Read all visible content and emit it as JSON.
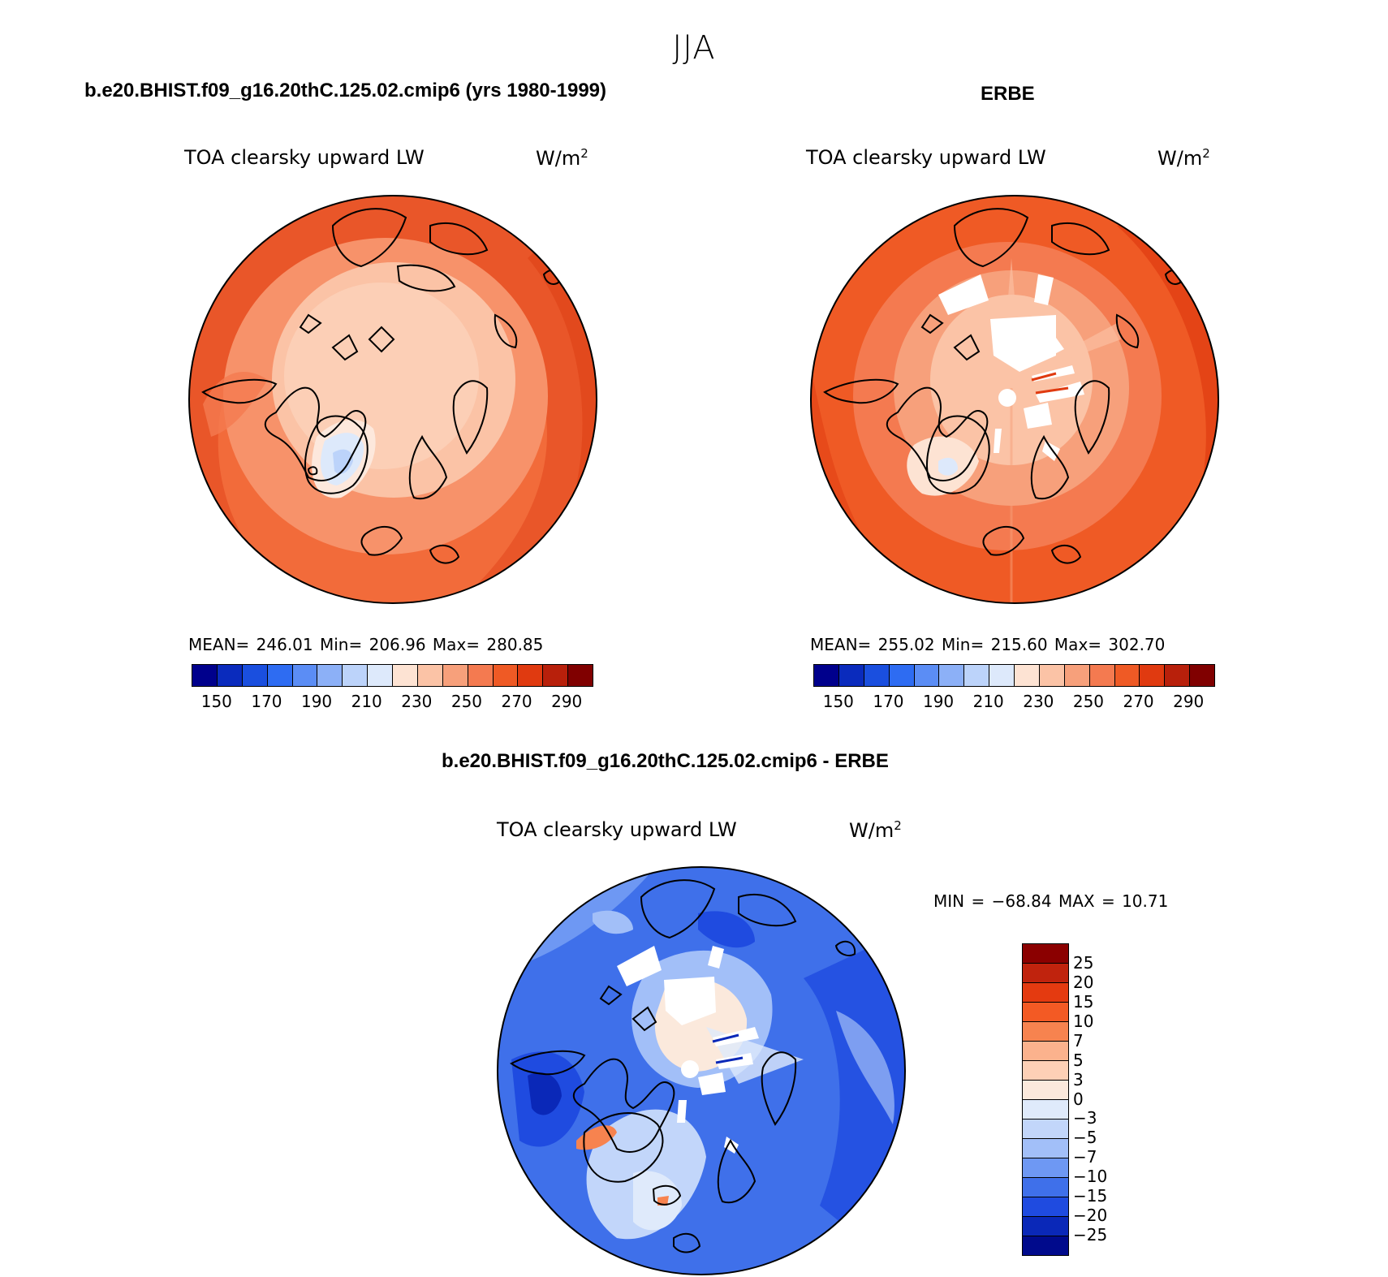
{
  "figure_title": "JJA",
  "panels": [
    {
      "case_title": "b.e20.BHIST.f09_g16.20thC.125.02.cmip6 (yrs 1980-1999)",
      "variable": "TOA clearsky upward LW",
      "units_base": "W/m",
      "units_exp": "2",
      "stats": "MEAN= 246.01   Min= 206.96   Max= 280.85",
      "colorbar_ticks": [
        "150",
        "170",
        "190",
        "210",
        "230",
        "250",
        "270",
        "290"
      ]
    },
    {
      "case_title": "ERBE",
      "variable": "TOA clearsky upward LW",
      "units_base": "W/m",
      "units_exp": "2",
      "stats": "MEAN= 255.02   Min= 215.60   Max= 302.70",
      "colorbar_ticks": [
        "150",
        "170",
        "190",
        "210",
        "230",
        "250",
        "270",
        "290"
      ]
    },
    {
      "case_title": "b.e20.BHIST.f09_g16.20thC.125.02.cmip6 - ERBE",
      "variable": "TOA clearsky upward LW",
      "units_base": "W/m",
      "units_exp": "2",
      "stats": "MIN = −68.84 MAX =  10.71",
      "colorbar_ticks": [
        "25",
        "20",
        "15",
        "10",
        "7",
        "5",
        "3",
        "0",
        "−3",
        "−5",
        "−7",
        "−10",
        "−15",
        "−20",
        "−25"
      ]
    }
  ],
  "colors": {
    "abs_scale": [
      "#00008c",
      "#0a2bbd",
      "#1a4fdf",
      "#2e6cf2",
      "#5b8df5",
      "#8cb0f7",
      "#bcd3fa",
      "#dde9fb",
      "#fde3d3",
      "#fbc3a6",
      "#f7a07b",
      "#f47a50",
      "#ef5a25",
      "#e03a10",
      "#b8200b",
      "#800000"
    ],
    "diff_scale": [
      "#8b0000",
      "#c0230d",
      "#e43a10",
      "#f35a24",
      "#f7834f",
      "#fbb28d",
      "#fdd0b6",
      "#fbe9dc",
      "#dfeafb",
      "#c2d6fa",
      "#a2bff8",
      "#6e98f3",
      "#3f70ea",
      "#1f4be0",
      "#0a28b8",
      "#000a8c"
    ]
  },
  "maps": [
    {
      "coastline": "polar-coastline",
      "field": "toa-clearsky-upward-lw-model"
    },
    {
      "coastline": "polar-coastline",
      "field": "toa-clearsky-upward-lw-erbe"
    },
    {
      "coastline": "polar-coastline",
      "field": "toa-clearsky-upward-lw-difference"
    }
  ]
}
